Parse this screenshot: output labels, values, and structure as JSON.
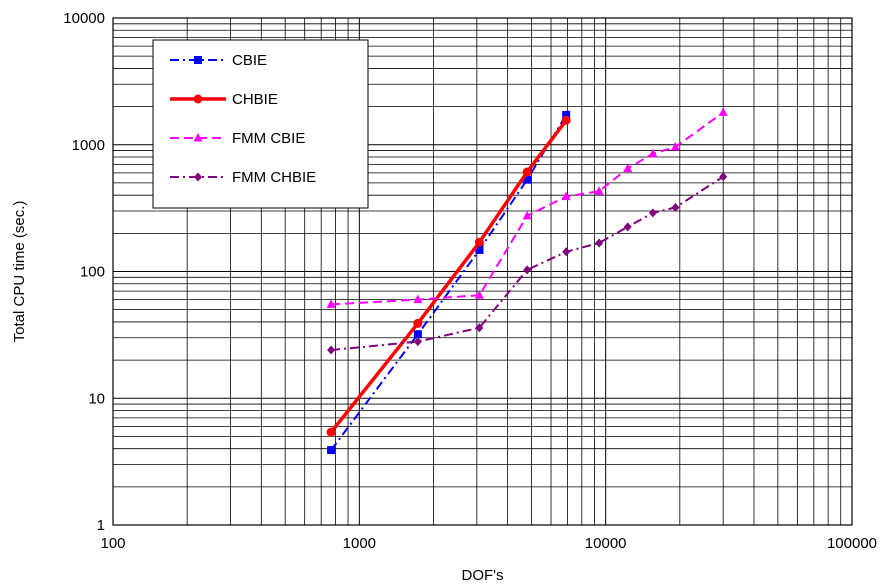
{
  "chart_data": {
    "type": "line",
    "title": "",
    "xlabel": "DOF's",
    "ylabel": "Total CPU time (sec.)",
    "x_scale": "log",
    "y_scale": "log",
    "xlim": [
      100,
      100000
    ],
    "ylim": [
      1,
      10000
    ],
    "x_ticks": [
      "100",
      "1000",
      "10000",
      "100000"
    ],
    "y_ticks": [
      "1",
      "10",
      "100",
      "1000",
      "10000"
    ],
    "grid": true,
    "legend_position": "top-left",
    "series": [
      {
        "name": "CBIE",
        "color": "#0000ff",
        "dash": "dash-dot",
        "marker": "square",
        "x": [
          768,
          1728,
          3072,
          4800,
          6912
        ],
        "y": [
          3.9,
          32,
          148,
          530,
          1720
        ]
      },
      {
        "name": "CHBIE",
        "color": "#ff0000",
        "dash": "solid",
        "marker": "circle",
        "x": [
          768,
          1728,
          3072,
          4800,
          6912
        ],
        "y": [
          5.4,
          39,
          170,
          610,
          1560
        ]
      },
      {
        "name": "FMM CBIE",
        "color": "#ff00ff",
        "dash": "dashed",
        "marker": "triangle",
        "x": [
          768,
          1728,
          3072,
          4800,
          6912,
          9408,
          12288,
          15552,
          19200,
          30000
        ],
        "y": [
          55,
          60,
          65,
          275,
          390,
          430,
          650,
          850,
          960,
          1800
        ]
      },
      {
        "name": "FMM CHBIE",
        "color": "#800080",
        "dash": "dash-dot",
        "marker": "diamond",
        "x": [
          768,
          1728,
          3072,
          4800,
          6912,
          9408,
          12288,
          15552,
          19200,
          30000
        ],
        "y": [
          24,
          28,
          36,
          103,
          143,
          168,
          225,
          290,
          320,
          560
        ]
      }
    ]
  }
}
